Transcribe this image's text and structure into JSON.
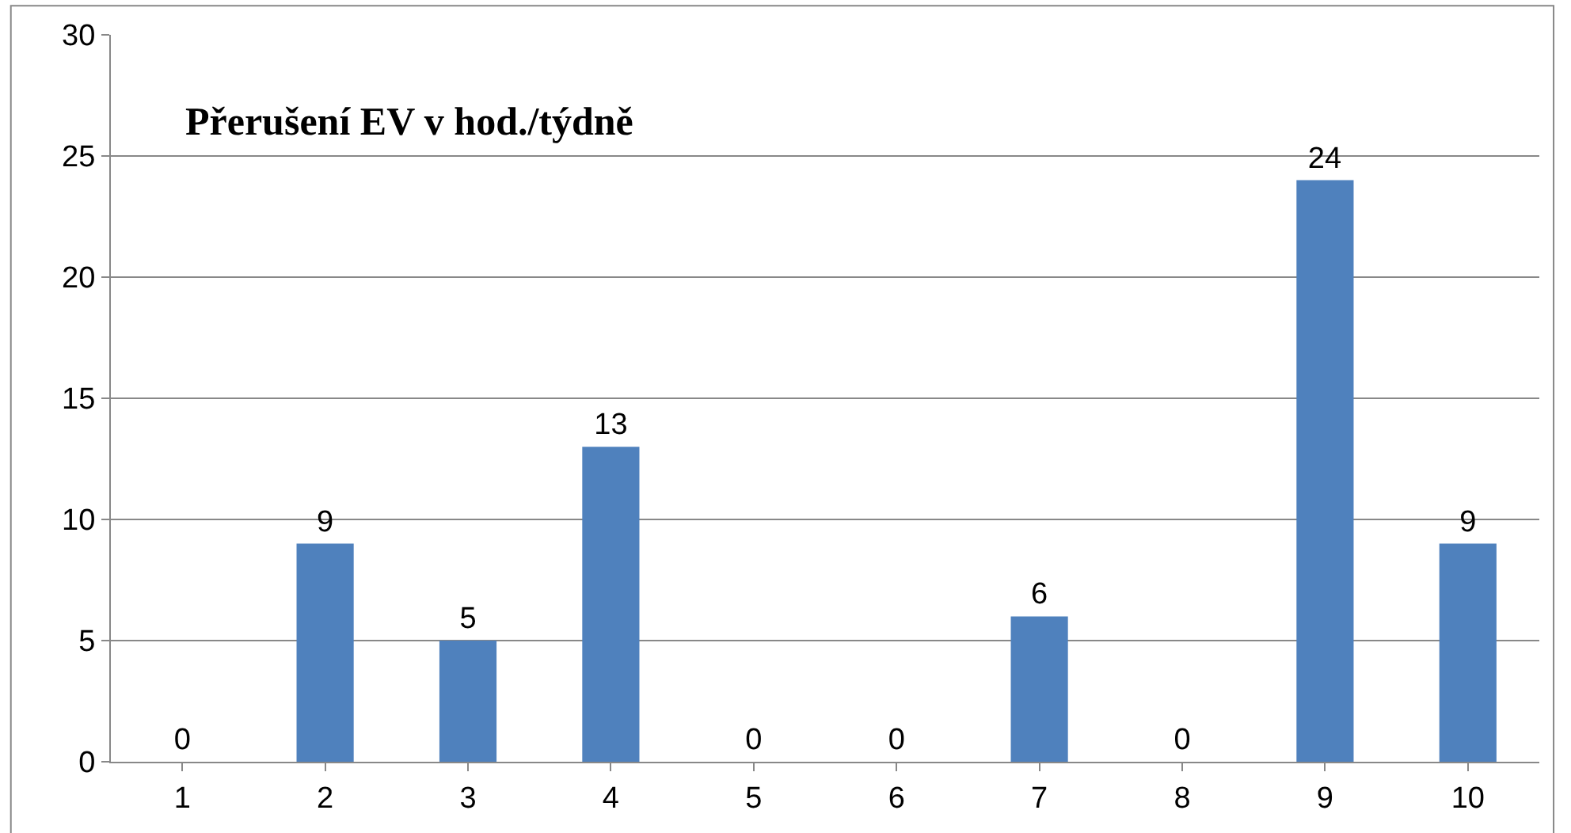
{
  "chart_data": {
    "type": "bar",
    "title": "Přerušení EV v hod./týdně",
    "categories": [
      "1",
      "2",
      "3",
      "4",
      "5",
      "6",
      "7",
      "8",
      "9",
      "10"
    ],
    "values": [
      0,
      9,
      5,
      13,
      0,
      0,
      6,
      0,
      24,
      9
    ],
    "color": "#4f81bd",
    "ylim": [
      0,
      30
    ],
    "yticks": [
      0,
      5,
      10,
      15,
      20,
      25,
      30
    ],
    "grid": "y",
    "data_labels": true,
    "legend": false
  }
}
